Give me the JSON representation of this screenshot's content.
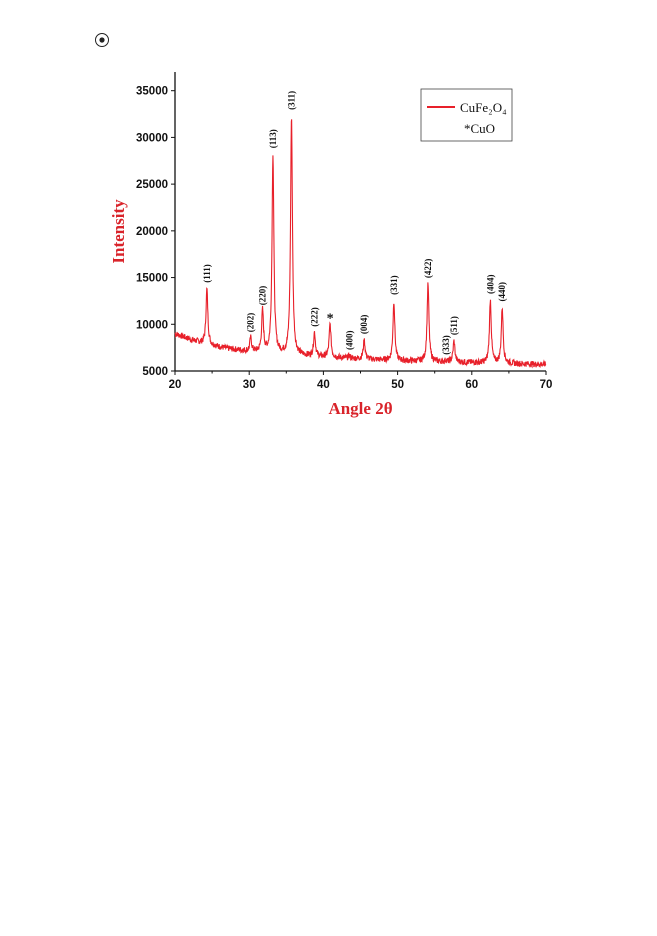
{
  "page": {
    "icon_name": "radio-button-icon"
  },
  "chart_data": {
    "type": "line",
    "xlabel": "Angle 2θ",
    "ylabel": "Intensity",
    "xlim": [
      20,
      70
    ],
    "ylim": [
      5000,
      37000
    ],
    "x_ticks": [
      20,
      30,
      40,
      50,
      60,
      70
    ],
    "y_ticks": [
      5000,
      10000,
      15000,
      20000,
      25000,
      30000,
      35000
    ],
    "grid": false,
    "line_color": "#e8202a",
    "legend": {
      "placement": "top-right",
      "entries": [
        "CuFe₂O₄",
        "*CuO"
      ]
    },
    "series": [
      {
        "name": "CuFe₂O₄",
        "baseline": [
          [
            20,
            9000
          ],
          [
            22,
            8400
          ],
          [
            24,
            7900
          ],
          [
            27,
            7400
          ],
          [
            30,
            7100
          ],
          [
            33,
            6900
          ],
          [
            36,
            6700
          ],
          [
            40,
            6500
          ],
          [
            45,
            6300
          ],
          [
            50,
            6100
          ],
          [
            55,
            6000
          ],
          [
            60,
            5900
          ],
          [
            65,
            5800
          ],
          [
            70,
            5700
          ]
        ],
        "peaks": [
          {
            "x": 24.3,
            "y": 13800,
            "label": "(111)"
          },
          {
            "x": 30.2,
            "y": 8500,
            "label": "(202)"
          },
          {
            "x": 31.8,
            "y": 11400,
            "label": "(220)"
          },
          {
            "x": 33.2,
            "y": 28200,
            "label": "(113)"
          },
          {
            "x": 35.7,
            "y": 32300,
            "label": "(311)"
          },
          {
            "x": 38.8,
            "y": 9100,
            "label": "(222)"
          },
          {
            "x": 40.9,
            "y": 10000,
            "label": "*"
          },
          {
            "x": 43.5,
            "y": 6600,
            "label": "(400)"
          },
          {
            "x": 45.5,
            "y": 8300,
            "label": "(004)"
          },
          {
            "x": 49.5,
            "y": 12500,
            "label": "(331)"
          },
          {
            "x": 54.1,
            "y": 14300,
            "label": "(422)"
          },
          {
            "x": 56.5,
            "y": 6100,
            "label": "(333)"
          },
          {
            "x": 57.6,
            "y": 8200,
            "label": "(511)"
          },
          {
            "x": 62.5,
            "y": 12600,
            "label": "(404)"
          },
          {
            "x": 64.1,
            "y": 11800,
            "label": "(440)"
          }
        ]
      }
    ]
  }
}
